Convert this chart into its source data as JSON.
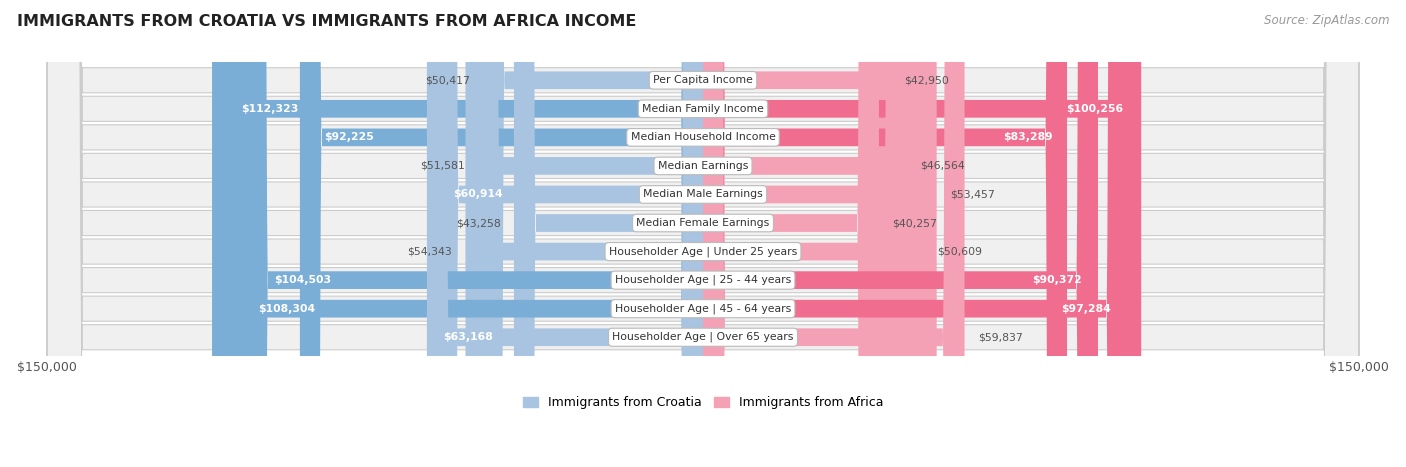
{
  "title": "IMMIGRANTS FROM CROATIA VS IMMIGRANTS FROM AFRICA INCOME",
  "source": "Source: ZipAtlas.com",
  "categories": [
    "Per Capita Income",
    "Median Family Income",
    "Median Household Income",
    "Median Earnings",
    "Median Male Earnings",
    "Median Female Earnings",
    "Householder Age | Under 25 years",
    "Householder Age | 25 - 44 years",
    "Householder Age | 45 - 64 years",
    "Householder Age | Over 65 years"
  ],
  "croatia_values": [
    50417,
    112323,
    92225,
    51581,
    60914,
    43258,
    54343,
    104503,
    108304,
    63168
  ],
  "africa_values": [
    42950,
    100256,
    83289,
    46564,
    53457,
    40257,
    50609,
    90372,
    97284,
    59837
  ],
  "croatia_labels": [
    "$50,417",
    "$112,323",
    "$92,225",
    "$51,581",
    "$60,914",
    "$43,258",
    "$54,343",
    "$104,503",
    "$108,304",
    "$63,168"
  ],
  "africa_labels": [
    "$42,950",
    "$100,256",
    "$83,289",
    "$46,564",
    "$53,457",
    "$40,257",
    "$50,609",
    "$90,372",
    "$97,284",
    "$59,837"
  ],
  "croatia_color_small": "#a8c4e0",
  "croatia_color_large": "#7aaed6",
  "africa_color_small": "#f4a0b5",
  "africa_color_large": "#f06d90",
  "max_value": 150000,
  "legend_croatia": "Immigrants from Croatia",
  "legend_africa": "Immigrants from Africa",
  "row_bg_color": "#e8e8e8",
  "row_border_color": "#d0d0d0",
  "large_threshold": 75000,
  "label_inside_threshold": 60000
}
